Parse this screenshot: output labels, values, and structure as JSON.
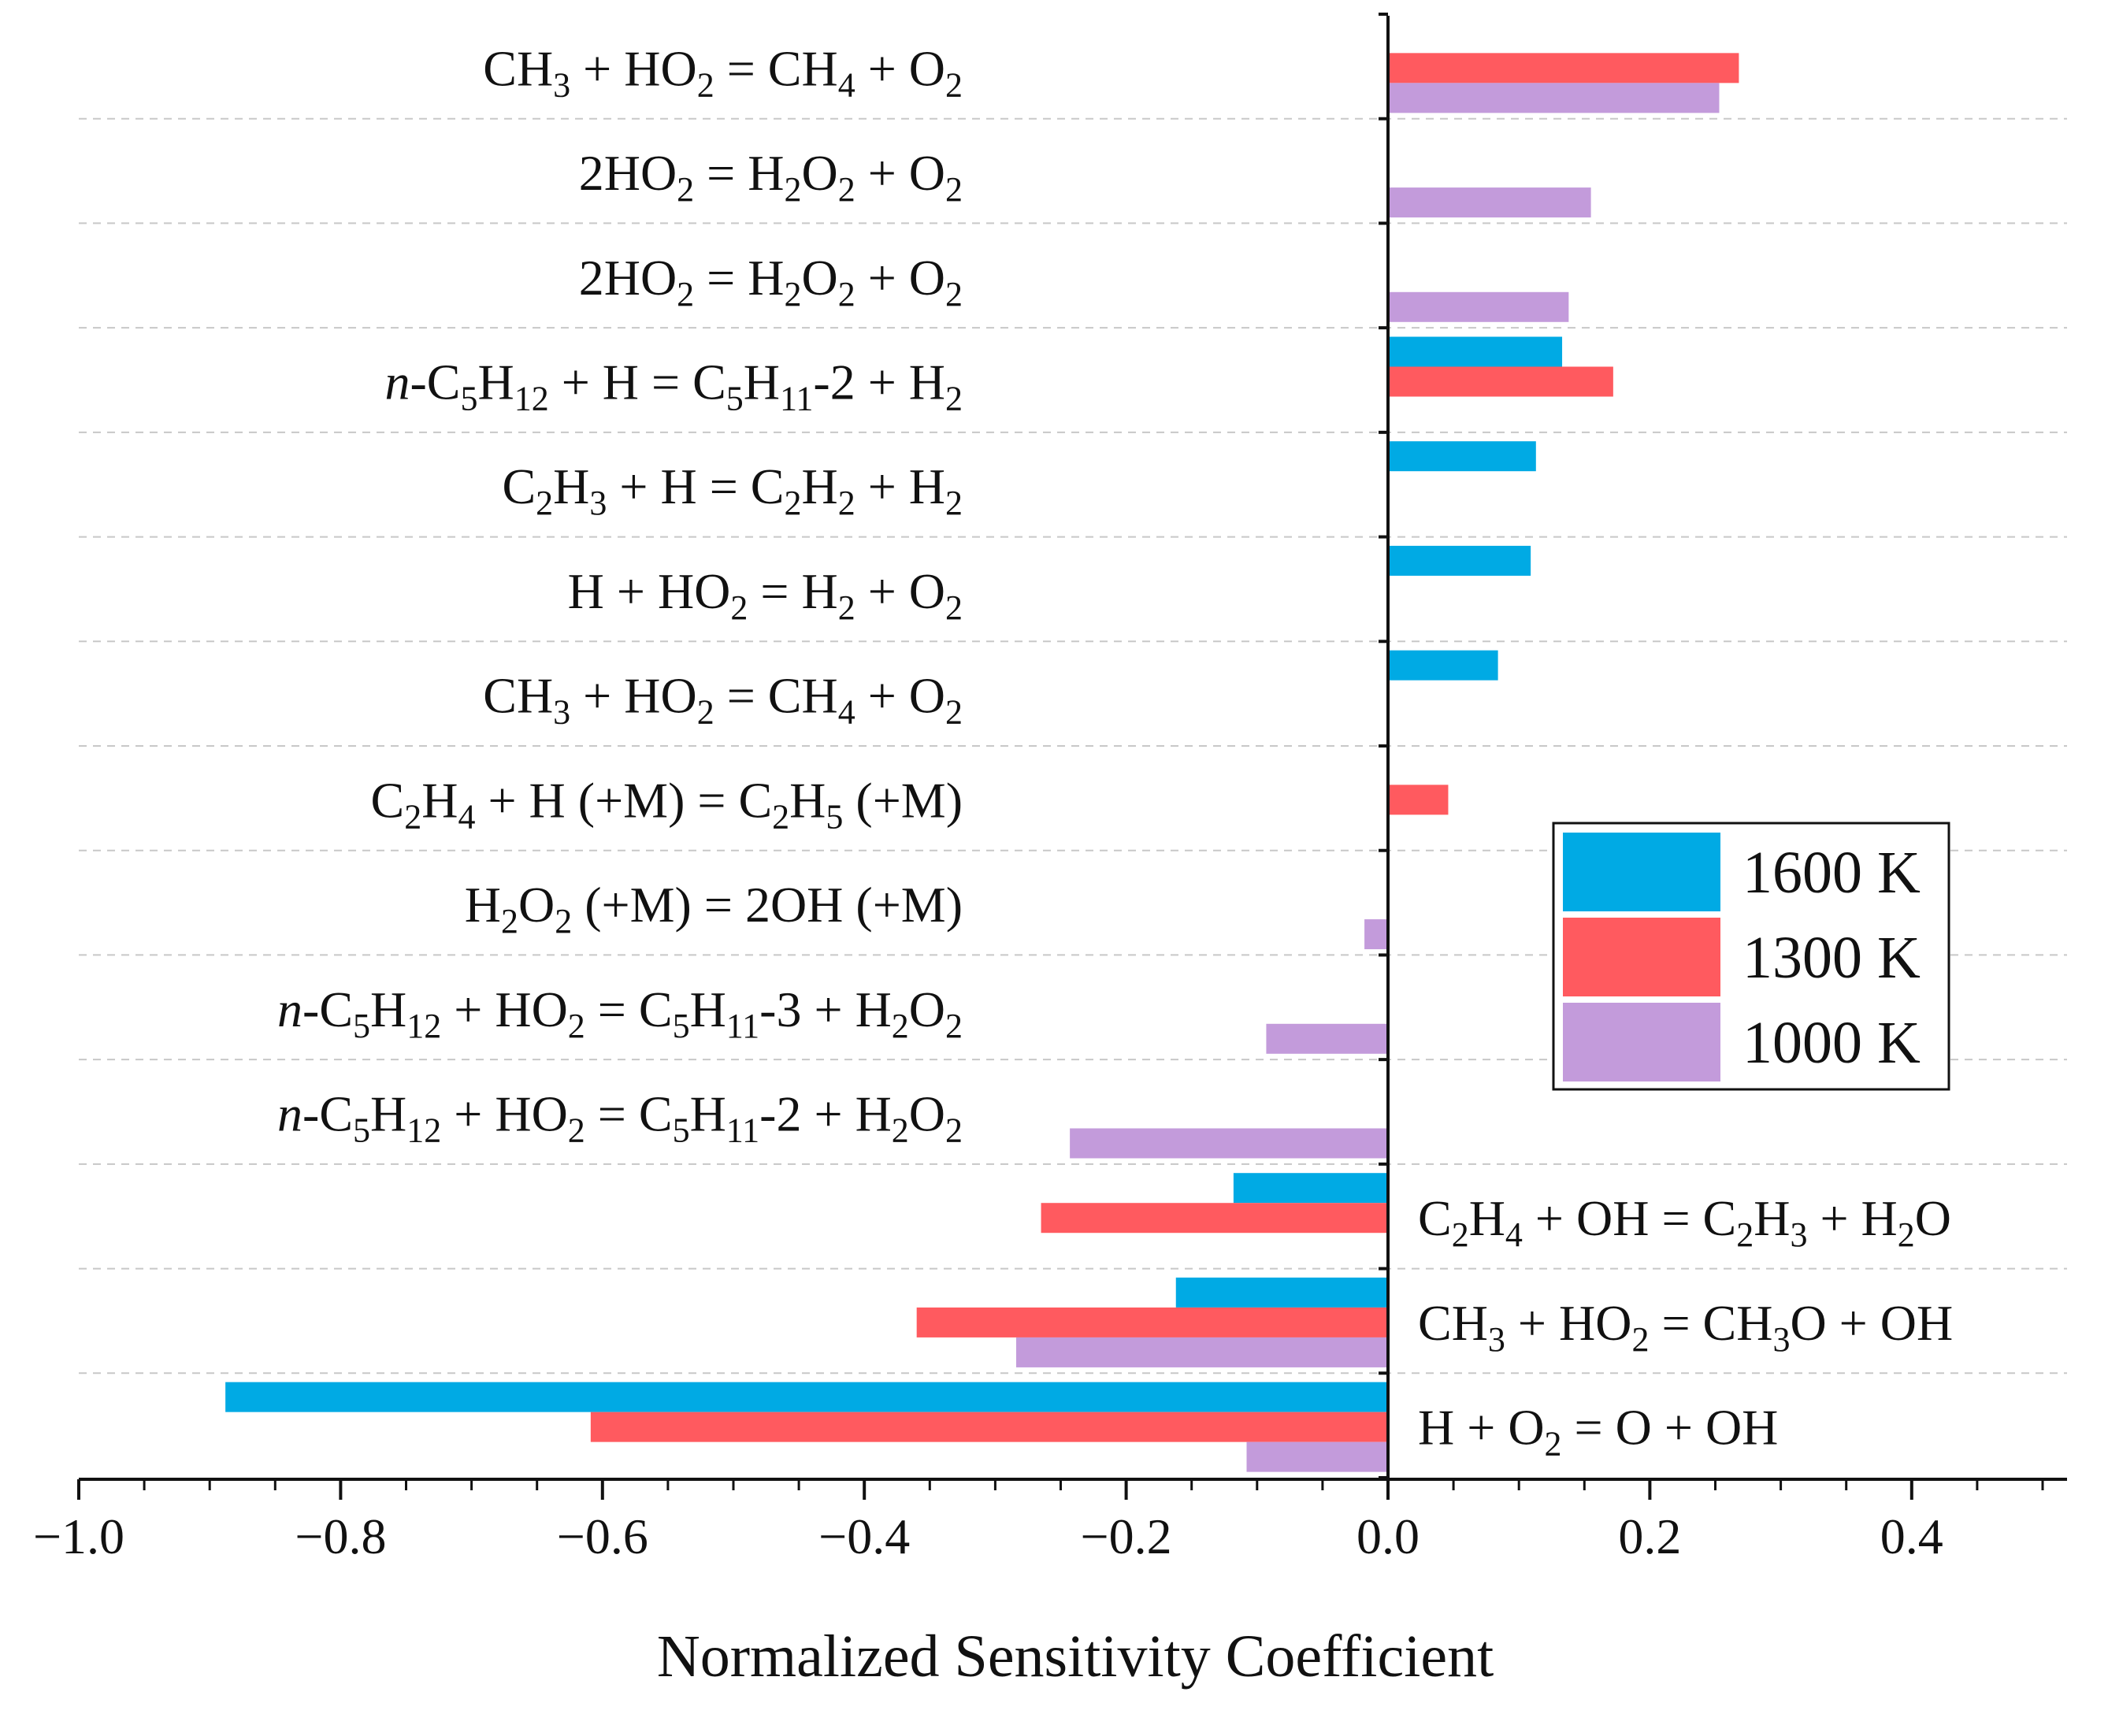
{
  "chart_data": {
    "type": "bar",
    "orientation": "horizontal",
    "xlabel": "Normalized Sensitivity Coefficient",
    "ylabel": "",
    "xlim": [
      -1.0,
      0.5
    ],
    "xticks": [
      -1.0,
      -0.8,
      -0.6,
      -0.4,
      -0.2,
      0.0,
      0.2,
      0.4
    ],
    "xtick_labels": [
      "−1.0",
      "−0.8",
      "−0.6",
      "−0.4",
      "−0.2",
      "0.0",
      "0.2",
      "0.4"
    ],
    "grid": "horizontal dashed separators between reactions",
    "legend_position": "right, middle",
    "series": [
      {
        "name": "1600 K",
        "color": "#00AAE4"
      },
      {
        "name": "1300 K",
        "color": "#FF5A5F"
      },
      {
        "name": "1000 K",
        "color": "#C39BDB"
      }
    ],
    "categories": [
      {
        "label_side": "left",
        "parts": [
          [
            "CH",
            "n"
          ],
          [
            "3",
            "sub"
          ],
          [
            " + HO",
            "n"
          ],
          [
            "2",
            "sub"
          ],
          [
            " = CH",
            "n"
          ],
          [
            "4",
            "sub"
          ],
          [
            " + O",
            "n"
          ],
          [
            "2",
            "sub"
          ]
        ],
        "values": [
          null,
          0.268,
          0.253
        ]
      },
      {
        "label_side": "left",
        "parts": [
          [
            "2HO",
            "n"
          ],
          [
            "2",
            "sub"
          ],
          [
            " = H",
            "n"
          ],
          [
            "2",
            "sub"
          ],
          [
            "O",
            "n"
          ],
          [
            "2",
            "sub"
          ],
          [
            " + O",
            "n"
          ],
          [
            "2",
            "sub"
          ]
        ],
        "values": [
          null,
          null,
          0.155
        ]
      },
      {
        "label_side": "left",
        "parts": [
          [
            "2HO",
            "n"
          ],
          [
            "2",
            "sub"
          ],
          [
            " = H",
            "n"
          ],
          [
            "2",
            "sub"
          ],
          [
            "O",
            "n"
          ],
          [
            "2",
            "sub"
          ],
          [
            " + O",
            "n"
          ],
          [
            "2",
            "sub"
          ]
        ],
        "values": [
          null,
          null,
          0.138
        ]
      },
      {
        "label_side": "left",
        "parts": [
          [
            "n",
            "i"
          ],
          [
            "-C",
            "n"
          ],
          [
            "5",
            "sub"
          ],
          [
            "H",
            "n"
          ],
          [
            "12",
            "sub"
          ],
          [
            " + H = C",
            "n"
          ],
          [
            "5",
            "sub"
          ],
          [
            "H",
            "n"
          ],
          [
            "11",
            "sub"
          ],
          [
            "-2 + H",
            "n"
          ],
          [
            "2",
            "sub"
          ]
        ],
        "values": [
          0.133,
          0.172,
          null
        ]
      },
      {
        "label_side": "left",
        "parts": [
          [
            "C",
            "n"
          ],
          [
            "2",
            "sub"
          ],
          [
            "H",
            "n"
          ],
          [
            "3",
            "sub"
          ],
          [
            " + H = C",
            "n"
          ],
          [
            "2",
            "sub"
          ],
          [
            "H",
            "n"
          ],
          [
            "2",
            "sub"
          ],
          [
            " + H",
            "n"
          ],
          [
            "2",
            "sub"
          ]
        ],
        "values": [
          0.113,
          null,
          null
        ]
      },
      {
        "label_side": "left",
        "parts": [
          [
            "H + HO",
            "n"
          ],
          [
            "2",
            "sub"
          ],
          [
            " = H",
            "n"
          ],
          [
            "2",
            "sub"
          ],
          [
            " + O",
            "n"
          ],
          [
            "2",
            "sub"
          ]
        ],
        "values": [
          0.109,
          null,
          null
        ]
      },
      {
        "label_side": "left",
        "parts": [
          [
            "CH",
            "n"
          ],
          [
            "3",
            "sub"
          ],
          [
            " + HO",
            "n"
          ],
          [
            "2",
            "sub"
          ],
          [
            " = CH",
            "n"
          ],
          [
            "4",
            "sub"
          ],
          [
            " + O",
            "n"
          ],
          [
            "2",
            "sub"
          ]
        ],
        "values": [
          0.084,
          null,
          null
        ]
      },
      {
        "label_side": "left",
        "parts": [
          [
            "C",
            "n"
          ],
          [
            "2",
            "sub"
          ],
          [
            "H",
            "n"
          ],
          [
            "4",
            "sub"
          ],
          [
            " + H (+M) = C",
            "n"
          ],
          [
            "2",
            "sub"
          ],
          [
            "H",
            "n"
          ],
          [
            "5",
            "sub"
          ],
          [
            " (+M)",
            "n"
          ]
        ],
        "values": [
          null,
          0.046,
          null
        ]
      },
      {
        "label_side": "left",
        "parts": [
          [
            "H",
            "n"
          ],
          [
            "2",
            "sub"
          ],
          [
            "O",
            "n"
          ],
          [
            "2",
            "sub"
          ],
          [
            " (+M) = 2OH (+M)",
            "n"
          ]
        ],
        "values": [
          null,
          null,
          -0.018
        ]
      },
      {
        "label_side": "left",
        "parts": [
          [
            "n",
            "i"
          ],
          [
            "-C",
            "n"
          ],
          [
            "5",
            "sub"
          ],
          [
            "H",
            "n"
          ],
          [
            "12",
            "sub"
          ],
          [
            " + HO",
            "n"
          ],
          [
            "2",
            "sub"
          ],
          [
            " = C",
            "n"
          ],
          [
            "5",
            "sub"
          ],
          [
            "H",
            "n"
          ],
          [
            "11",
            "sub"
          ],
          [
            "-3 + H",
            "n"
          ],
          [
            "2",
            "sub"
          ],
          [
            "O",
            "n"
          ],
          [
            "2",
            "sub"
          ]
        ],
        "values": [
          null,
          null,
          -0.093
        ]
      },
      {
        "label_side": "left",
        "parts": [
          [
            "n",
            "i"
          ],
          [
            "-C",
            "n"
          ],
          [
            "5",
            "sub"
          ],
          [
            "H",
            "n"
          ],
          [
            "12",
            "sub"
          ],
          [
            " + HO",
            "n"
          ],
          [
            "2",
            "sub"
          ],
          [
            " = C",
            "n"
          ],
          [
            "5",
            "sub"
          ],
          [
            "H",
            "n"
          ],
          [
            "11",
            "sub"
          ],
          [
            "-2 + H",
            "n"
          ],
          [
            "2",
            "sub"
          ],
          [
            "O",
            "n"
          ],
          [
            "2",
            "sub"
          ]
        ],
        "values": [
          null,
          null,
          -0.243
        ]
      },
      {
        "label_side": "right",
        "parts": [
          [
            "C",
            "n"
          ],
          [
            "2",
            "sub"
          ],
          [
            "H",
            "n"
          ],
          [
            "4",
            "sub"
          ],
          [
            " + OH = C",
            "n"
          ],
          [
            "2",
            "sub"
          ],
          [
            "H",
            "n"
          ],
          [
            "3",
            "sub"
          ],
          [
            " + H",
            "n"
          ],
          [
            "2",
            "sub"
          ],
          [
            "O",
            "n"
          ]
        ],
        "values": [
          -0.118,
          -0.265,
          null
        ]
      },
      {
        "label_side": "right",
        "parts": [
          [
            "CH",
            "n"
          ],
          [
            "3",
            "sub"
          ],
          [
            " + HO",
            "n"
          ],
          [
            "2",
            "sub"
          ],
          [
            " = CH",
            "n"
          ],
          [
            "3",
            "sub"
          ],
          [
            "O + OH",
            "n"
          ]
        ],
        "values": [
          -0.162,
          -0.36,
          -0.284
        ]
      },
      {
        "label_side": "right",
        "parts": [
          [
            "H + O",
            "n"
          ],
          [
            "2",
            "sub"
          ],
          [
            " = O + OH",
            "n"
          ]
        ],
        "values": [
          -0.888,
          -0.609,
          -0.108
        ]
      }
    ]
  }
}
